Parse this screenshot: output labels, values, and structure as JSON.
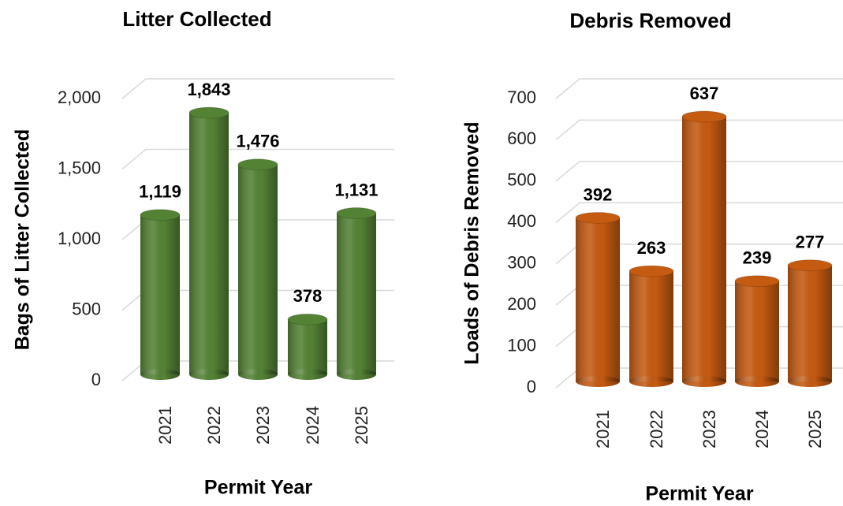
{
  "chart_data": [
    {
      "type": "bar",
      "title": "Litter Collected",
      "x_label": "Permit Year",
      "y_label": "Bags of Litter Collected",
      "categories": [
        "2021",
        "2022",
        "2023",
        "2024",
        "2025"
      ],
      "values": [
        1119,
        1843,
        1476,
        378,
        1131
      ],
      "value_labels": [
        "1,119",
        "1,843",
        "1,476",
        "378",
        "1,131"
      ],
      "color": "#548235",
      "ylim": [
        0,
        2000
      ],
      "yticks": [
        0,
        500,
        {
          "value": 1000,
          "label": "1,000"
        },
        {
          "value": 1500,
          "label": "1,500"
        },
        {
          "value": 2000,
          "label": "2,000"
        }
      ],
      "grid": true
    },
    {
      "type": "bar",
      "title": "Debris Removed",
      "x_label": "Permit Year",
      "y_label": "Loads of Debris Removed",
      "categories": [
        "2021",
        "2022",
        "2023",
        "2024",
        "2025"
      ],
      "values": [
        392,
        263,
        637,
        239,
        277
      ],
      "color": "#c55a11",
      "ylim": [
        0,
        700
      ],
      "yticks": [
        0,
        100,
        200,
        300,
        400,
        500,
        600,
        700
      ],
      "grid": true
    }
  ]
}
